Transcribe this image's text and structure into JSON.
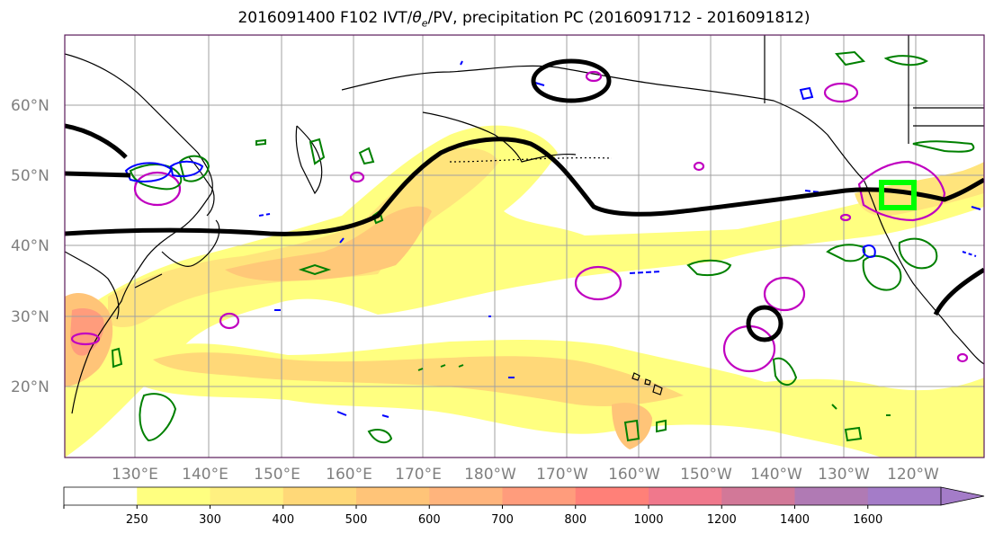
{
  "title": {
    "prefix": "2016091400 F102 IVT/",
    "theta": "θ",
    "theta_sub": "e",
    "suffix": "/PV, precipitation PC (2016091712 - 2016091812)"
  },
  "lat_labels": [
    "60°N",
    "50°N",
    "40°N",
    "30°N",
    "20°N"
  ],
  "lon_labels": [
    "130°E",
    "140°E",
    "150°E",
    "160°E",
    "170°E",
    "180°W",
    "170°W",
    "160°W",
    "150°W",
    "140°W",
    "130°W",
    "120°W"
  ],
  "colorbar": {
    "ticks": [
      "250",
      "300",
      "400",
      "500",
      "600",
      "700",
      "800",
      "1000",
      "1200",
      "1400",
      "1600"
    ],
    "colors": [
      "#ffffff",
      "#ffff80",
      "#fff080",
      "#ffd878",
      "#ffc478",
      "#ffb47c",
      "#ff9c7c",
      "#ff8078",
      "#f0788c",
      "#d27898",
      "#b07ab4",
      "#a47cc8"
    ]
  },
  "legend_colors": {
    "coast": "#000000",
    "theta_contour": "#000000",
    "pv_positive": "#008000",
    "pv_negative": "#0000ff",
    "precip": "#c000c0",
    "target_box": "#00ff00"
  }
}
